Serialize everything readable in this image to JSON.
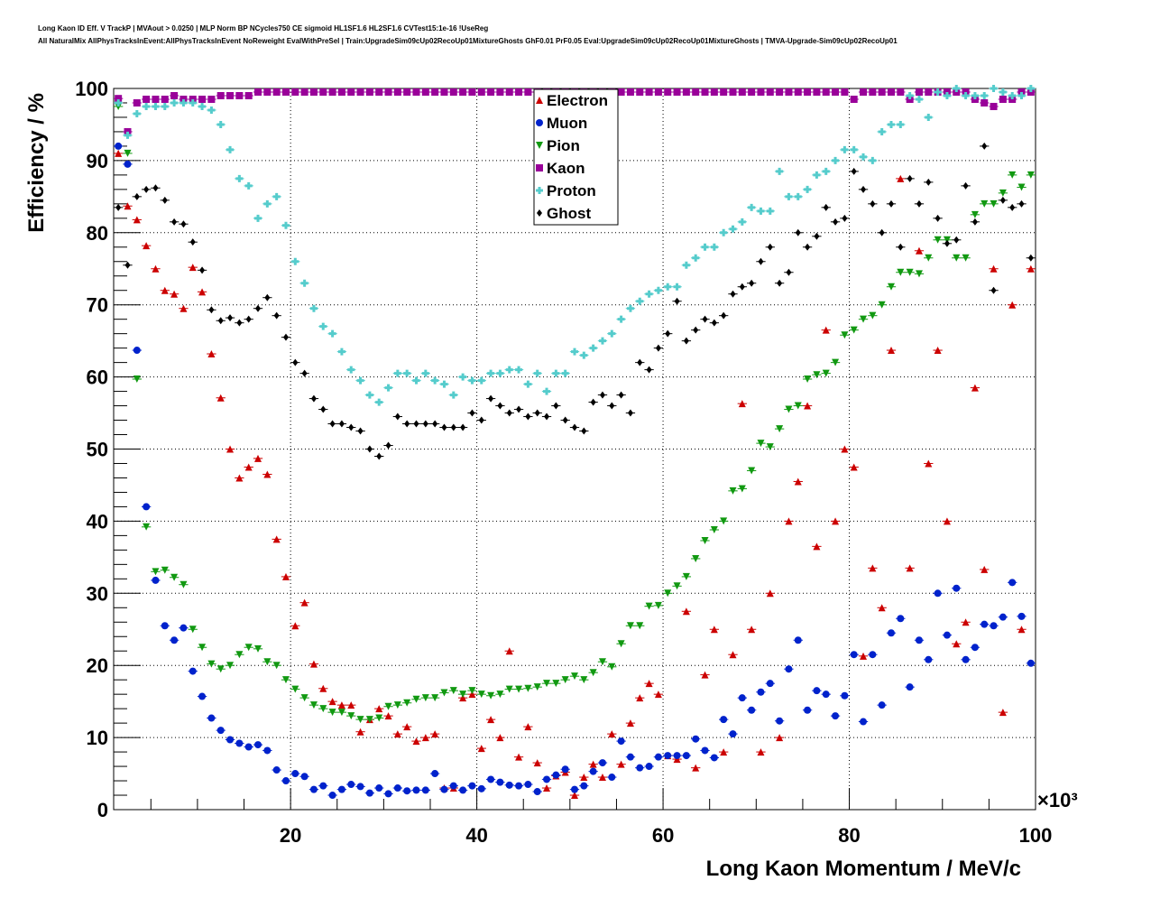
{
  "title_line1": "Long Kaon ID Eff. V TrackP | MVAout > 0.0250 | MLP Norm BP NCycles750 CE sigmoid HL1SF1.6 HL2SF1.6 CVTest15:1e-16 !UseReg",
  "title_line2": "All NaturalMix AllPhysTracksInEvent:AllPhysTracksInEvent NoReweight EvalWithPreSel | Train:UpgradeSim09cUp02RecoUp01MixtureGhosts GhF0.01 PrF0.05 Eval:UpgradeSim09cUp02RecoUp01MixtureGhosts | TMVA-Upgrade-Sim09cUp02RecoUp01",
  "chart_data": {
    "type": "scatter",
    "xlabel": "Long Kaon Momentum / MeV/c",
    "ylabel": "Efficiency / %",
    "x_multiplier": "×10³",
    "xlim": [
      1,
      100
    ],
    "ylim": [
      0,
      100
    ],
    "x_ticks": [
      20,
      40,
      60,
      80,
      100
    ],
    "y_ticks": [
      0,
      10,
      20,
      30,
      40,
      50,
      60,
      70,
      80,
      90,
      100
    ],
    "grid": true,
    "legend_position": "top-center",
    "x": [
      1.5,
      2.5,
      3.5,
      4.5,
      5.5,
      6.5,
      7.5,
      8.5,
      9.5,
      10.5,
      11.5,
      12.5,
      13.5,
      14.5,
      15.5,
      16.5,
      17.5,
      18.5,
      19.5,
      20.5,
      21.5,
      22.5,
      23.5,
      24.5,
      25.5,
      26.5,
      27.5,
      28.5,
      29.5,
      30.5,
      31.5,
      32.5,
      33.5,
      34.5,
      35.5,
      36.5,
      37.5,
      38.5,
      39.5,
      40.5,
      41.5,
      42.5,
      43.5,
      44.5,
      45.5,
      46.5,
      47.5,
      48.5,
      49.5,
      50.5,
      51.5,
      52.5,
      53.5,
      54.5,
      55.5,
      56.5,
      57.5,
      58.5,
      59.5,
      60.5,
      61.5,
      62.5,
      63.5,
      64.5,
      65.5,
      66.5,
      67.5,
      68.5,
      69.5,
      70.5,
      71.5,
      72.5,
      73.5,
      74.5,
      75.5,
      76.5,
      77.5,
      78.5,
      79.5,
      80.5,
      81.5,
      82.5,
      83.5,
      84.5,
      85.5,
      86.5,
      87.5,
      88.5,
      89.5,
      90.5,
      91.5,
      92.5,
      93.5,
      94.5,
      95.5,
      96.5,
      97.5,
      98.5,
      99.5
    ],
    "series": [
      {
        "name": "Electron",
        "color": "#cc0000",
        "marker": "triangle-up",
        "values": [
          91,
          83.7,
          81.8,
          78.2,
          75,
          72,
          71.5,
          69.5,
          75.2,
          71.8,
          63.2,
          57.1,
          50,
          46,
          47.5,
          48.7,
          46.5,
          37.5,
          32.3,
          25.5,
          28.7,
          20.2,
          16.8,
          15,
          14.5,
          14.5,
          10.8,
          12.5,
          14,
          13,
          10.5,
          11.5,
          9.5,
          10,
          10.5,
          3,
          3,
          15.5,
          16,
          8.5,
          12.5,
          10,
          22,
          7.3,
          11.5,
          6.5,
          3,
          4.7,
          5.2,
          2,
          4.5,
          6.3,
          4.5,
          10.5,
          6.3,
          12,
          15.5,
          17.5,
          16,
          7.5,
          7,
          27.5,
          5.8,
          18.7,
          25,
          8,
          21.5,
          56.3,
          25,
          8,
          30,
          10,
          40,
          45.5,
          56,
          36.5,
          66.5,
          40,
          50,
          47.5,
          21.3,
          33.5,
          28,
          63.7,
          87.5,
          33.5,
          77.5,
          48,
          63.7,
          40,
          23,
          26,
          58.5,
          33.3,
          75,
          13.5,
          70,
          25,
          75
        ]
      },
      {
        "name": "Muon",
        "color": "#0022cc",
        "marker": "circle",
        "values": [
          92,
          89.5,
          63.7,
          42,
          31.8,
          25.5,
          23.5,
          25.2,
          19.2,
          15.7,
          12.7,
          11,
          9.7,
          9.2,
          8.7,
          9,
          8.2,
          5.5,
          4,
          5,
          4.6,
          2.8,
          3.3,
          2,
          2.8,
          3.5,
          3.2,
          2.3,
          3,
          2.2,
          3,
          2.6,
          2.7,
          2.7,
          5,
          2.8,
          3.3,
          2.7,
          3.3,
          2.9,
          4.2,
          3.8,
          3.4,
          3.3,
          3.5,
          2.5,
          4.2,
          4.8,
          5.6,
          2.8,
          3.3,
          5.3,
          6.5,
          4.5,
          9.5,
          7.3,
          5.8,
          6,
          7.3,
          7.5,
          7.5,
          7.5,
          9.8,
          8.2,
          7.2,
          12.5,
          10.5,
          15.5,
          13.8,
          16.3,
          17.5,
          12.3,
          19.5,
          23.5,
          13.8,
          16.5,
          16,
          13,
          15.8,
          21.5,
          12.2,
          21.5,
          14.5,
          24.5,
          26.5,
          17,
          23.5,
          20.8,
          30,
          24.2,
          30.7,
          20.8,
          22.5,
          25.7,
          25.5,
          26.7,
          31.5,
          26.8,
          20.3
        ]
      },
      {
        "name": "Pion",
        "color": "#119911",
        "marker": "triangle-down",
        "values": [
          97.5,
          91,
          59.7,
          39.2,
          33,
          33.2,
          32.2,
          31.2,
          25,
          22.5,
          20.2,
          19.5,
          20,
          21.5,
          22.5,
          22.3,
          20.5,
          20,
          18,
          16.7,
          15.5,
          14.5,
          14,
          13.5,
          13.5,
          13,
          12.5,
          12.5,
          12.7,
          14.3,
          14.5,
          14.8,
          15.3,
          15.5,
          15.5,
          16.2,
          16.5,
          16,
          16.5,
          16,
          15.8,
          16,
          16.7,
          16.7,
          16.8,
          17,
          17.5,
          17.5,
          18,
          18.5,
          18,
          19,
          20.5,
          19.8,
          23,
          25.5,
          25.5,
          28.2,
          28.3,
          30,
          31,
          32.3,
          34.8,
          37.3,
          38.8,
          40,
          44.2,
          44.5,
          47,
          50.8,
          50.3,
          52.8,
          55.5,
          56,
          59.7,
          60.3,
          60.5,
          62,
          65.8,
          66.5,
          68,
          68.5,
          70,
          72.5,
          74.5,
          74.5,
          74.3,
          76.5,
          79,
          79,
          76.5,
          76.5,
          82.5,
          84,
          84,
          85.5,
          88,
          86.3,
          88
        ]
      },
      {
        "name": "Kaon",
        "color": "#990099",
        "marker": "square",
        "values": [
          98.6,
          94,
          98,
          98.5,
          98.5,
          98.5,
          99,
          98.5,
          98.5,
          98.5,
          98.5,
          99,
          99,
          99,
          99,
          99.5,
          99.5,
          99.5,
          99.5,
          99.5,
          99.5,
          99.5,
          99.5,
          99.5,
          99.5,
          99.5,
          99.5,
          99.5,
          99.5,
          99.5,
          99.5,
          99.5,
          99.5,
          99.5,
          99.5,
          99.5,
          99.5,
          99.5,
          99.5,
          99.5,
          99.5,
          99.5,
          99.5,
          99.5,
          99.5,
          99.5,
          99.5,
          99.5,
          99.5,
          99.5,
          99.5,
          99.5,
          99.5,
          99.5,
          99.5,
          99.5,
          99.5,
          99.5,
          99.5,
          99.5,
          99.5,
          99.5,
          99.5,
          99.5,
          99.5,
          99.5,
          99.5,
          99.5,
          99.5,
          99.5,
          99.5,
          99.5,
          99.5,
          99.5,
          99.5,
          99.5,
          99.5,
          99.5,
          99.5,
          98.5,
          99.5,
          99.5,
          99.5,
          99.5,
          99.5,
          98.5,
          99.5,
          99.5,
          99.5,
          99.5,
          99.5,
          99.5,
          98.5,
          98,
          97.5,
          98.5,
          98.5,
          99.5,
          99.5
        ]
      },
      {
        "name": "Proton",
        "color": "#55cccc",
        "marker": "cross",
        "values": [
          98,
          93.5,
          96.5,
          97.5,
          97.5,
          97.5,
          98,
          98,
          98,
          97.5,
          97,
          95,
          91.5,
          87.5,
          86.5,
          82,
          84,
          85,
          81,
          76,
          73,
          69.5,
          67,
          66,
          63.5,
          61,
          59.5,
          57.5,
          56.5,
          58.5,
          60.5,
          60.5,
          59.5,
          60.5,
          59.5,
          59,
          57.5,
          60,
          59.5,
          59.5,
          60.5,
          60.5,
          61,
          61,
          59,
          60.5,
          58,
          60.5,
          60.5,
          63.5,
          63,
          64,
          65,
          66,
          68,
          69.5,
          70.5,
          71.5,
          72,
          72.5,
          72.5,
          75.5,
          76.5,
          78,
          78,
          80,
          80.5,
          81.5,
          83.5,
          83,
          83,
          88.5,
          85,
          85,
          86,
          88,
          88.5,
          90,
          91.5,
          91.5,
          90.5,
          90,
          94,
          95,
          95,
          99,
          98.5,
          96,
          99.5,
          99,
          100,
          99,
          99,
          99,
          100,
          99.5,
          99,
          99,
          100
        ]
      },
      {
        "name": "Ghost",
        "color": "#000000",
        "marker": "diamond",
        "values": [
          83.5,
          75.5,
          85,
          86,
          86.2,
          84.5,
          81.5,
          81.2,
          78.7,
          74.8,
          69.3,
          67.8,
          68.2,
          67.5,
          68,
          69.5,
          71,
          68.5,
          65.5,
          62,
          60.5,
          57,
          55.5,
          53.5,
          53.5,
          53,
          52.5,
          50,
          49,
          50.5,
          54.5,
          53.5,
          53.5,
          53.5,
          53.5,
          53,
          53,
          53,
          55,
          54,
          57,
          56,
          55,
          55.5,
          54.5,
          55,
          54.5,
          56,
          54,
          53,
          52.5,
          56.5,
          57.5,
          56,
          57.5,
          55,
          62,
          61,
          64,
          66,
          70.5,
          65,
          66.5,
          68,
          67.5,
          68.5,
          71.5,
          72.5,
          73,
          76,
          78,
          73,
          74.5,
          80,
          78,
          79.5,
          83.5,
          81.5,
          82,
          88.5,
          86,
          84,
          80,
          84,
          78,
          87.5,
          84,
          87,
          82,
          78.5,
          79,
          86.5,
          81.5,
          92,
          72,
          84.5,
          83.5,
          84,
          76.5
        ]
      }
    ]
  }
}
